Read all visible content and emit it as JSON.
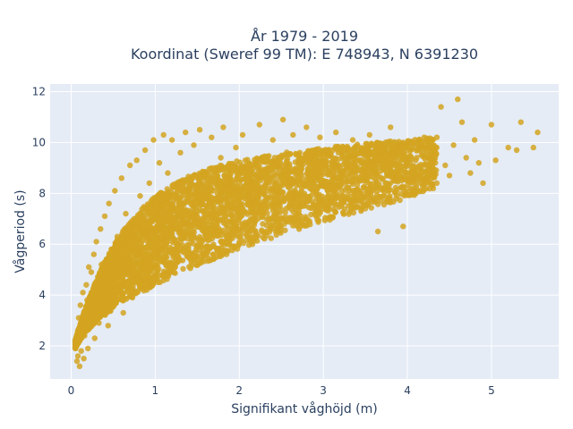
{
  "chart_data": {
    "type": "scatter",
    "title_lines": [
      "År 1979 - 2019",
      "Koordinat (Sweref 99 TM): E 748943, N 6391230"
    ],
    "xlabel": "Signifikant våghöjd (m)",
    "ylabel": "Vågperiod (s)",
    "xlim": [
      -0.25,
      5.8
    ],
    "ylim": [
      0.7,
      12.3
    ],
    "x_ticks": [
      0,
      1,
      2,
      3,
      4,
      5
    ],
    "y_ticks": [
      2,
      4,
      6,
      8,
      10,
      12
    ],
    "grid": true,
    "marker_color": "#d4a421",
    "plot_background": "#e5ecf6",
    "series": [
      {
        "points": [
          [
            0.05,
            1.9
          ],
          [
            0.06,
            2.1
          ],
          [
            0.07,
            1.4
          ],
          [
            0.08,
            1.6
          ],
          [
            0.08,
            2.6
          ],
          [
            0.09,
            3.1
          ],
          [
            0.1,
            1.2
          ],
          [
            0.1,
            2.2
          ],
          [
            0.11,
            3.6
          ],
          [
            0.12,
            1.8
          ],
          [
            0.13,
            2.9
          ],
          [
            0.14,
            4.1
          ],
          [
            0.15,
            1.5
          ],
          [
            0.15,
            3.3
          ],
          [
            0.16,
            2.4
          ],
          [
            0.18,
            4.4
          ],
          [
            0.19,
            3.8
          ],
          [
            0.2,
            1.9
          ],
          [
            0.21,
            5.1
          ],
          [
            0.22,
            2.7
          ],
          [
            0.24,
            4.9
          ],
          [
            0.25,
            3.2
          ],
          [
            0.27,
            5.6
          ],
          [
            0.28,
            2.3
          ],
          [
            0.3,
            6.1
          ],
          [
            0.31,
            4.2
          ],
          [
            0.33,
            2.9
          ],
          [
            0.35,
            6.6
          ],
          [
            0.36,
            5.2
          ],
          [
            0.38,
            3.4
          ],
          [
            0.4,
            7.1
          ],
          [
            0.42,
            4.6
          ],
          [
            0.44,
            2.8
          ],
          [
            0.45,
            7.6
          ],
          [
            0.48,
            5.8
          ],
          [
            0.5,
            3.7
          ],
          [
            0.52,
            8.1
          ],
          [
            0.55,
            6.3
          ],
          [
            0.57,
            4.1
          ],
          [
            0.6,
            8.6
          ],
          [
            0.62,
            3.3
          ],
          [
            0.65,
            7.2
          ],
          [
            0.68,
            5.1
          ],
          [
            0.7,
            9.1
          ],
          [
            0.73,
            3.9
          ],
          [
            0.75,
            6.8
          ],
          [
            0.78,
            9.3
          ],
          [
            0.8,
            4.6
          ],
          [
            0.82,
            7.9
          ],
          [
            0.85,
            5.6
          ],
          [
            0.88,
            9.7
          ],
          [
            0.9,
            4.2
          ],
          [
            0.93,
            8.4
          ],
          [
            0.95,
            6.1
          ],
          [
            0.98,
            10.1
          ],
          [
            1.0,
            4.8
          ],
          [
            1.03,
            7.6
          ],
          [
            1.05,
            9.2
          ],
          [
            1.08,
            5.4
          ],
          [
            1.1,
            10.3
          ],
          [
            1.13,
            6.9
          ],
          [
            1.15,
            8.8
          ],
          [
            1.18,
            4.9
          ],
          [
            1.2,
            10.1
          ],
          [
            1.24,
            7.3
          ],
          [
            1.27,
            5.7
          ],
          [
            1.3,
            9.6
          ],
          [
            1.33,
            6.4
          ],
          [
            1.36,
            10.4
          ],
          [
            1.4,
            8.1
          ],
          [
            1.43,
            5.3
          ],
          [
            1.46,
            9.9
          ],
          [
            1.5,
            7.1
          ],
          [
            1.53,
            10.5
          ],
          [
            1.56,
            6.1
          ],
          [
            1.6,
            8.7
          ],
          [
            1.63,
            5.8
          ],
          [
            1.67,
            10.2
          ],
          [
            1.7,
            7.6
          ],
          [
            1.74,
            6.5
          ],
          [
            1.78,
            9.4
          ],
          [
            1.81,
            10.6
          ],
          [
            1.85,
            6.1
          ],
          [
            1.89,
            8.2
          ],
          [
            1.92,
            7.1
          ],
          [
            1.96,
            9.8
          ],
          [
            2.0,
            6.6
          ],
          [
            2.04,
            10.3
          ],
          [
            2.08,
            8.6
          ],
          [
            2.12,
            6.4
          ],
          [
            2.16,
            9.1
          ],
          [
            2.2,
            7.3
          ],
          [
            2.24,
            10.7
          ],
          [
            2.28,
            6.8
          ],
          [
            2.32,
            8.9
          ],
          [
            2.36,
            7.6
          ],
          [
            2.4,
            10.1
          ],
          [
            2.44,
            7.1
          ],
          [
            2.48,
            9.3
          ],
          [
            2.52,
            10.9
          ],
          [
            2.56,
            7.4
          ],
          [
            2.6,
            8.6
          ],
          [
            2.64,
            10.3
          ],
          [
            2.68,
            7.9
          ],
          [
            2.72,
            9.6
          ],
          [
            2.76,
            7.5
          ],
          [
            2.8,
            10.6
          ],
          [
            2.84,
            8.2
          ],
          [
            2.88,
            9.1
          ],
          [
            2.92,
            7.8
          ],
          [
            2.96,
            10.2
          ],
          [
            3.0,
            8.5
          ],
          [
            3.05,
            9.7
          ],
          [
            3.1,
            7.9
          ],
          [
            3.15,
            10.4
          ],
          [
            3.2,
            8.8
          ],
          [
            3.25,
            9.4
          ],
          [
            3.3,
            8.2
          ],
          [
            3.35,
            10.1
          ],
          [
            3.4,
            8.6
          ],
          [
            3.45,
            9.2
          ],
          [
            3.5,
            7.4
          ],
          [
            3.55,
            10.3
          ],
          [
            3.6,
            8.9
          ],
          [
            3.65,
            6.5
          ],
          [
            3.7,
            9.5
          ],
          [
            3.75,
            8.4
          ],
          [
            3.8,
            10.6
          ],
          [
            3.85,
            9.1
          ],
          [
            3.9,
            8.7
          ],
          [
            3.95,
            6.7
          ],
          [
            4.0,
            9.8
          ],
          [
            4.05,
            8.6
          ],
          [
            4.1,
            9.3
          ],
          [
            4.15,
            8.1
          ],
          [
            4.2,
            10.2
          ],
          [
            4.25,
            8.9
          ],
          [
            4.3,
            9.6
          ],
          [
            4.35,
            8.4
          ],
          [
            4.4,
            11.4
          ],
          [
            4.45,
            9.1
          ],
          [
            4.5,
            8.7
          ],
          [
            4.55,
            9.9
          ],
          [
            4.6,
            11.7
          ],
          [
            4.65,
            10.8
          ],
          [
            4.7,
            9.4
          ],
          [
            4.75,
            8.8
          ],
          [
            4.8,
            10.1
          ],
          [
            4.85,
            9.2
          ],
          [
            4.9,
            8.4
          ],
          [
            5.0,
            10.7
          ],
          [
            5.05,
            9.3
          ],
          [
            5.2,
            9.8
          ],
          [
            5.3,
            9.7
          ],
          [
            5.35,
            10.8
          ],
          [
            5.5,
            9.8
          ],
          [
            5.55,
            10.4
          ]
        ]
      }
    ]
  }
}
